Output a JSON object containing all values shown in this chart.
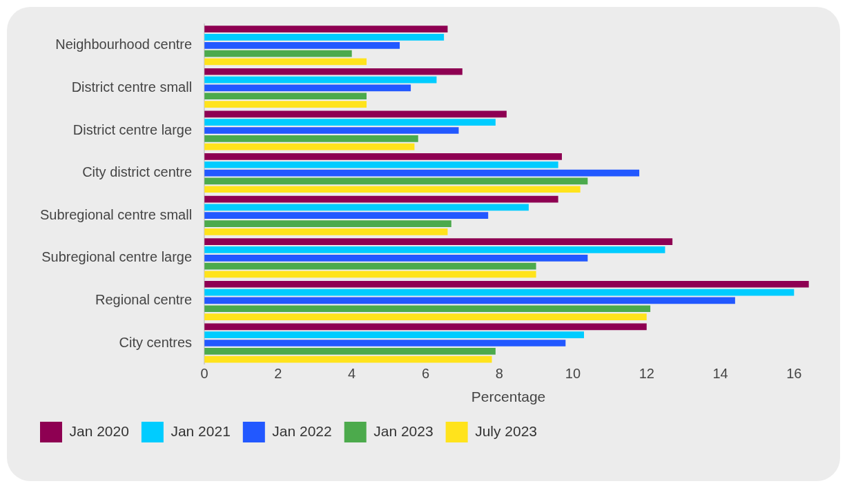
{
  "chart_data": {
    "type": "bar",
    "orientation": "horizontal",
    "xlabel": "Percentage",
    "categories": [
      "Neighbourhood centre",
      "District centre small",
      "District centre large",
      "City district centre",
      "Subregional centre small",
      "Subregional centre large",
      "Regional centre",
      "City centres"
    ],
    "series": [
      {
        "name": "Jan 2020",
        "color": "#8e0052",
        "values": [
          6.6,
          7.0,
          8.2,
          9.7,
          9.6,
          12.7,
          16.4,
          12.0
        ]
      },
      {
        "name": "Jan 2021",
        "color": "#00ccff",
        "values": [
          6.5,
          6.3,
          7.9,
          9.6,
          8.8,
          12.5,
          16.0,
          10.3
        ]
      },
      {
        "name": "Jan 2022",
        "color": "#2258ff",
        "values": [
          5.3,
          5.6,
          6.9,
          11.8,
          7.7,
          10.4,
          14.4,
          9.8
        ]
      },
      {
        "name": "Jan 2023",
        "color": "#4caa4c",
        "values": [
          4.0,
          4.4,
          5.8,
          10.4,
          6.7,
          9.0,
          12.1,
          7.9
        ]
      },
      {
        "name": "July 2023",
        "color": "#ffe31c",
        "values": [
          4.4,
          4.4,
          5.7,
          10.2,
          6.6,
          9.0,
          12.0,
          7.8
        ]
      }
    ],
    "xlim": [
      0,
      16.5
    ],
    "xticks": [
      0,
      2,
      4,
      6,
      8,
      10,
      12,
      14,
      16
    ],
    "grid": false,
    "legend": "bottom left"
  }
}
